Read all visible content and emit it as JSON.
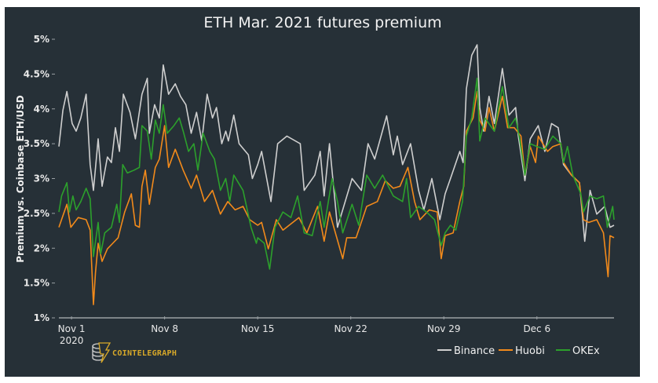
{
  "chart_data": {
    "type": "line",
    "title": "ETH Mar. 2021 futures premium",
    "xlabel": "",
    "ylabel": "Premium vs. Coinbase ETH/USD",
    "x_unit": "days since Nov 1 2020",
    "xlim": [
      -0.95,
      40.8
    ],
    "ylim": [
      1,
      5
    ],
    "yticks": [
      1,
      1.5,
      2,
      2.5,
      3,
      3.5,
      4,
      4.5,
      5
    ],
    "ytick_labels": [
      "1%",
      "1.5%",
      "2%",
      "2.5%",
      "3%",
      "3.5%",
      "4%",
      "4.5%",
      "5%"
    ],
    "xticks": [
      0,
      7,
      14,
      21,
      28,
      35
    ],
    "xtick_labels": [
      "Nov 1",
      "Nov 8",
      "Nov 15",
      "Nov 22",
      "Nov 29",
      "Dec 6"
    ],
    "xtick_sublabel": "2020",
    "grid": false,
    "legend_placement": "bottom-right",
    "series": [
      {
        "name": "Binance",
        "color": "#cfcfcf",
        "points": [
          [
            -0.95,
            3.46
          ],
          [
            -0.65,
            3.98
          ],
          [
            -0.35,
            4.25
          ],
          [
            0.05,
            3.79
          ],
          [
            0.35,
            3.68
          ],
          [
            0.7,
            3.87
          ],
          [
            1.1,
            4.21
          ],
          [
            1.4,
            3.2
          ],
          [
            1.65,
            2.83
          ],
          [
            2.0,
            3.57
          ],
          [
            2.3,
            2.89
          ],
          [
            2.7,
            3.31
          ],
          [
            3.0,
            3.23
          ],
          [
            3.3,
            3.73
          ],
          [
            3.6,
            3.39
          ],
          [
            3.9,
            4.21
          ],
          [
            4.4,
            3.95
          ],
          [
            4.8,
            3.57
          ],
          [
            5.3,
            4.21
          ],
          [
            5.7,
            4.44
          ],
          [
            5.85,
            3.65
          ],
          [
            6.25,
            4.06
          ],
          [
            6.6,
            3.87
          ],
          [
            6.9,
            4.63
          ],
          [
            7.3,
            4.21
          ],
          [
            7.8,
            4.36
          ],
          [
            8.2,
            4.18
          ],
          [
            8.6,
            4.06
          ],
          [
            9.0,
            3.65
          ],
          [
            9.4,
            3.95
          ],
          [
            9.8,
            3.54
          ],
          [
            10.2,
            4.21
          ],
          [
            10.6,
            3.87
          ],
          [
            10.9,
            4.02
          ],
          [
            11.3,
            3.5
          ],
          [
            11.6,
            3.68
          ],
          [
            11.8,
            3.54
          ],
          [
            12.2,
            3.91
          ],
          [
            12.6,
            3.5
          ],
          [
            13.3,
            3.34
          ],
          [
            13.6,
            3.0
          ],
          [
            14.0,
            3.2
          ],
          [
            14.3,
            3.39
          ],
          [
            15.0,
            2.67
          ],
          [
            15.5,
            3.5
          ],
          [
            16.2,
            3.61
          ],
          [
            17.2,
            3.5
          ],
          [
            17.5,
            2.83
          ],
          [
            18.3,
            3.05
          ],
          [
            18.7,
            3.39
          ],
          [
            19.0,
            2.75
          ],
          [
            19.4,
            3.5
          ],
          [
            20.0,
            2.3
          ],
          [
            21.1,
            3.0
          ],
          [
            21.8,
            2.83
          ],
          [
            22.3,
            3.5
          ],
          [
            22.8,
            3.28
          ],
          [
            23.7,
            3.9
          ],
          [
            24.2,
            3.34
          ],
          [
            24.5,
            3.61
          ],
          [
            24.9,
            3.2
          ],
          [
            25.5,
            3.5
          ],
          [
            26.1,
            2.83
          ],
          [
            26.5,
            2.55
          ],
          [
            27.1,
            3.0
          ],
          [
            27.7,
            2.41
          ],
          [
            28.1,
            2.78
          ],
          [
            28.5,
            3.0
          ],
          [
            29.2,
            3.39
          ],
          [
            29.45,
            3.23
          ],
          [
            29.7,
            4.29
          ],
          [
            30.1,
            4.77
          ],
          [
            30.5,
            4.92
          ],
          [
            30.7,
            4.02
          ],
          [
            31.0,
            3.68
          ],
          [
            31.4,
            4.18
          ],
          [
            31.8,
            3.79
          ],
          [
            32.4,
            4.58
          ],
          [
            32.9,
            3.91
          ],
          [
            33.4,
            4.02
          ],
          [
            33.6,
            3.61
          ],
          [
            34.1,
            2.97
          ],
          [
            34.5,
            3.57
          ],
          [
            35.1,
            3.76
          ],
          [
            35.6,
            3.39
          ],
          [
            36.1,
            3.79
          ],
          [
            36.6,
            3.73
          ],
          [
            37.0,
            3.2
          ],
          [
            37.6,
            3.05
          ],
          [
            38.2,
            2.94
          ],
          [
            38.6,
            2.1
          ],
          [
            39.0,
            2.83
          ],
          [
            39.5,
            2.49
          ],
          [
            40.1,
            2.6
          ],
          [
            40.5,
            2.3
          ],
          [
            40.8,
            2.33
          ]
        ]
      },
      {
        "name": "Huobi",
        "color": "#f28a1b",
        "points": [
          [
            -0.95,
            2.3
          ],
          [
            -0.35,
            2.63
          ],
          [
            -0.05,
            2.3
          ],
          [
            0.5,
            2.44
          ],
          [
            1.1,
            2.41
          ],
          [
            1.4,
            2.26
          ],
          [
            1.65,
            1.19
          ],
          [
            1.8,
            1.65
          ],
          [
            2.0,
            2.07
          ],
          [
            2.3,
            1.81
          ],
          [
            2.7,
            1.99
          ],
          [
            3.1,
            2.07
          ],
          [
            3.5,
            2.15
          ],
          [
            4.0,
            2.52
          ],
          [
            4.5,
            2.78
          ],
          [
            4.8,
            2.33
          ],
          [
            5.1,
            2.3
          ],
          [
            5.3,
            2.89
          ],
          [
            5.55,
            3.12
          ],
          [
            5.85,
            2.63
          ],
          [
            6.3,
            3.16
          ],
          [
            6.6,
            3.28
          ],
          [
            7.0,
            3.76
          ],
          [
            7.3,
            3.16
          ],
          [
            7.8,
            3.42
          ],
          [
            8.4,
            3.12
          ],
          [
            9.0,
            2.86
          ],
          [
            9.4,
            3.05
          ],
          [
            10.0,
            2.67
          ],
          [
            10.6,
            2.83
          ],
          [
            11.2,
            2.49
          ],
          [
            11.75,
            2.67
          ],
          [
            12.3,
            2.55
          ],
          [
            12.9,
            2.6
          ],
          [
            13.4,
            2.41
          ],
          [
            14.0,
            2.33
          ],
          [
            14.3,
            2.37
          ],
          [
            14.8,
            1.99
          ],
          [
            15.4,
            2.41
          ],
          [
            15.9,
            2.26
          ],
          [
            17.1,
            2.44
          ],
          [
            17.7,
            2.22
          ],
          [
            18.5,
            2.6
          ],
          [
            19.0,
            2.1
          ],
          [
            19.4,
            2.52
          ],
          [
            20.4,
            1.85
          ],
          [
            20.7,
            2.15
          ],
          [
            21.4,
            2.15
          ],
          [
            22.2,
            2.6
          ],
          [
            23.0,
            2.67
          ],
          [
            23.6,
            2.97
          ],
          [
            24.2,
            2.86
          ],
          [
            24.7,
            2.89
          ],
          [
            25.3,
            3.16
          ],
          [
            25.8,
            2.67
          ],
          [
            26.2,
            2.41
          ],
          [
            26.9,
            2.55
          ],
          [
            27.5,
            2.52
          ],
          [
            27.8,
            1.85
          ],
          [
            28.1,
            2.18
          ],
          [
            28.7,
            2.22
          ],
          [
            29.2,
            2.67
          ],
          [
            29.5,
            2.89
          ],
          [
            29.7,
            3.68
          ],
          [
            30.2,
            3.87
          ],
          [
            30.5,
            4.25
          ],
          [
            30.7,
            3.84
          ],
          [
            31.1,
            3.68
          ],
          [
            31.4,
            4.02
          ],
          [
            31.8,
            3.68
          ],
          [
            32.4,
            4.18
          ],
          [
            32.8,
            3.73
          ],
          [
            33.3,
            3.73
          ],
          [
            33.8,
            3.61
          ],
          [
            34.1,
            3.05
          ],
          [
            34.5,
            3.46
          ],
          [
            34.9,
            3.23
          ],
          [
            35.1,
            3.61
          ],
          [
            35.8,
            3.39
          ],
          [
            36.2,
            3.46
          ],
          [
            36.8,
            3.5
          ],
          [
            37.0,
            3.23
          ],
          [
            37.6,
            3.05
          ],
          [
            38.2,
            2.94
          ],
          [
            38.5,
            2.41
          ],
          [
            38.9,
            2.37
          ],
          [
            39.5,
            2.41
          ],
          [
            40.0,
            2.22
          ],
          [
            40.35,
            1.59
          ],
          [
            40.5,
            2.18
          ],
          [
            40.8,
            2.15
          ]
        ]
      },
      {
        "name": "OKEx",
        "color": "#2ca02c",
        "points": [
          [
            -0.95,
            2.52
          ],
          [
            -0.75,
            2.75
          ],
          [
            -0.35,
            2.94
          ],
          [
            -0.15,
            2.52
          ],
          [
            0.1,
            2.75
          ],
          [
            0.35,
            2.55
          ],
          [
            0.7,
            2.67
          ],
          [
            1.1,
            2.86
          ],
          [
            1.4,
            2.71
          ],
          [
            1.65,
            1.88
          ],
          [
            2.0,
            2.37
          ],
          [
            2.2,
            1.92
          ],
          [
            2.5,
            2.22
          ],
          [
            3.0,
            2.3
          ],
          [
            3.4,
            2.63
          ],
          [
            3.6,
            2.37
          ],
          [
            3.85,
            3.2
          ],
          [
            4.2,
            3.08
          ],
          [
            4.7,
            3.12
          ],
          [
            5.1,
            3.16
          ],
          [
            5.3,
            3.76
          ],
          [
            5.7,
            3.68
          ],
          [
            6.0,
            3.28
          ],
          [
            6.3,
            3.84
          ],
          [
            6.6,
            3.65
          ],
          [
            6.9,
            4.06
          ],
          [
            7.2,
            3.65
          ],
          [
            7.7,
            3.76
          ],
          [
            8.1,
            3.87
          ],
          [
            8.4,
            3.68
          ],
          [
            8.8,
            3.39
          ],
          [
            9.2,
            3.5
          ],
          [
            9.5,
            3.12
          ],
          [
            9.9,
            3.65
          ],
          [
            10.4,
            3.39
          ],
          [
            10.75,
            3.28
          ],
          [
            11.2,
            2.83
          ],
          [
            11.6,
            3.0
          ],
          [
            11.9,
            2.67
          ],
          [
            12.2,
            3.05
          ],
          [
            12.9,
            2.83
          ],
          [
            13.5,
            2.3
          ],
          [
            13.9,
            2.07
          ],
          [
            14.0,
            2.15
          ],
          [
            14.5,
            2.07
          ],
          [
            14.9,
            1.7
          ],
          [
            15.3,
            2.3
          ],
          [
            15.9,
            2.52
          ],
          [
            16.5,
            2.44
          ],
          [
            17.0,
            2.75
          ],
          [
            17.5,
            2.22
          ],
          [
            18.1,
            2.18
          ],
          [
            18.7,
            2.67
          ],
          [
            19.0,
            2.3
          ],
          [
            19.6,
            3.0
          ],
          [
            20.0,
            2.67
          ],
          [
            20.4,
            2.22
          ],
          [
            21.1,
            2.63
          ],
          [
            21.6,
            2.33
          ],
          [
            22.2,
            3.05
          ],
          [
            22.8,
            2.86
          ],
          [
            23.4,
            3.05
          ],
          [
            24.2,
            2.75
          ],
          [
            24.9,
            2.67
          ],
          [
            25.2,
            3.0
          ],
          [
            25.5,
            2.44
          ],
          [
            26.1,
            2.6
          ],
          [
            26.7,
            2.52
          ],
          [
            27.3,
            2.41
          ],
          [
            27.8,
            2.04
          ],
          [
            28.1,
            2.22
          ],
          [
            28.5,
            2.33
          ],
          [
            28.9,
            2.26
          ],
          [
            29.4,
            2.67
          ],
          [
            29.7,
            3.61
          ],
          [
            30.1,
            3.87
          ],
          [
            30.5,
            4.44
          ],
          [
            30.7,
            3.54
          ],
          [
            31.1,
            3.87
          ],
          [
            31.5,
            3.76
          ],
          [
            31.8,
            3.68
          ],
          [
            32.4,
            4.32
          ],
          [
            32.9,
            3.73
          ],
          [
            33.4,
            3.87
          ],
          [
            33.7,
            3.57
          ],
          [
            34.1,
            3.05
          ],
          [
            34.5,
            3.5
          ],
          [
            35.0,
            3.46
          ],
          [
            35.6,
            3.42
          ],
          [
            36.2,
            3.61
          ],
          [
            36.8,
            3.5
          ],
          [
            37.0,
            3.23
          ],
          [
            37.3,
            3.46
          ],
          [
            37.7,
            3.05
          ],
          [
            38.3,
            2.78
          ],
          [
            38.5,
            2.52
          ],
          [
            39.0,
            2.75
          ],
          [
            39.5,
            2.71
          ],
          [
            40.0,
            2.75
          ],
          [
            40.3,
            2.3
          ],
          [
            40.7,
            2.6
          ],
          [
            40.8,
            2.41
          ]
        ]
      }
    ]
  },
  "logo": {
    "text": "COINTELEGRAPH"
  }
}
